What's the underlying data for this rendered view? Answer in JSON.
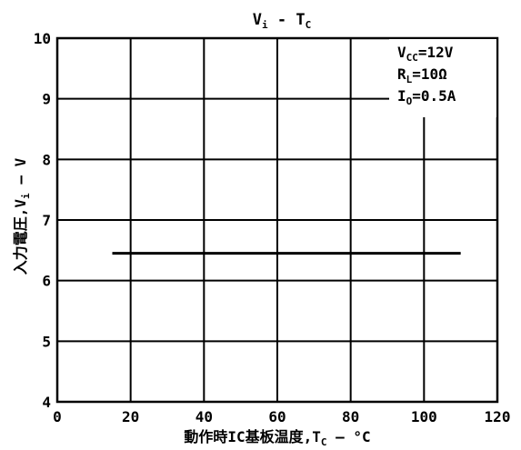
{
  "chart_data": {
    "type": "line",
    "title": "Vᵢ - Tᴄ",
    "title_main": "V",
    "title_main_sub": "i",
    "title_sep": " - ",
    "title_var": "T",
    "title_var_sub": "C",
    "xlabel": "動作時IC基板温度,T",
    "xlabel_sub": "C",
    "xlabel_unit": " — °C",
    "ylabel": "入力電圧,V",
    "ylabel_sub": "i",
    "ylabel_unit": " — V",
    "xlim": [
      0,
      120
    ],
    "ylim": [
      4,
      10
    ],
    "x_ticks": [
      0,
      20,
      40,
      60,
      80,
      100,
      120
    ],
    "y_ticks": [
      4,
      5,
      6,
      7,
      8,
      9,
      10
    ],
    "grid": true,
    "annotations": [
      {
        "main": "V",
        "sub": "CC",
        "rest": "=12V"
      },
      {
        "main": "R",
        "sub": "L",
        "rest": "=10Ω"
      },
      {
        "main": "I",
        "sub": "O",
        "rest": "=0.5A"
      }
    ],
    "series": [
      {
        "x": [
          15,
          110
        ],
        "y": [
          6.45,
          6.45
        ]
      }
    ]
  },
  "colors": {
    "line": "#000000",
    "grid": "#000000",
    "background": "#ffffff"
  }
}
